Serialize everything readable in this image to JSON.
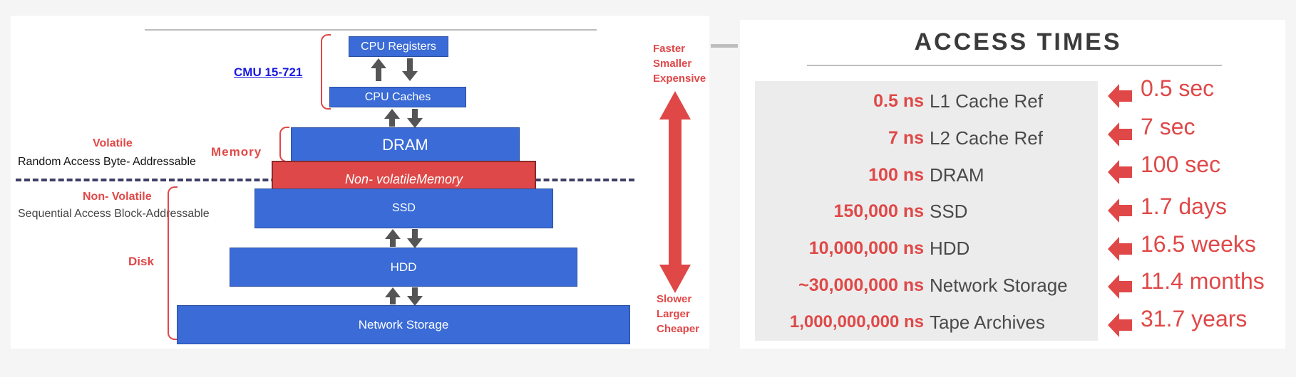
{
  "left": {
    "course_link": "CMU 15-721",
    "volatile_label": "Volatile",
    "random_access_label": "Random Access  Byte- Addressable",
    "memory_label": "Memory",
    "non_volatile_label": "Non- Volatile",
    "sequential_label": "Sequential Access  Block-Addressable",
    "disk_label": "Disk",
    "boxes": {
      "cpu_registers": "CPU Registers",
      "cpu_caches": "CPU Caches",
      "dram": "DRAM",
      "nvm": "Non- volatileMemory",
      "ssd": "SSD",
      "hdd": "HDD",
      "network_storage": "Network Storage"
    },
    "faster_top": [
      "Faster",
      "Smaller",
      "Expensive"
    ],
    "slower_bottom": [
      "Slower",
      "Larger",
      "Cheaper"
    ]
  },
  "right": {
    "title": "ACCESS TIMES",
    "rows": [
      {
        "value": "0.5 ns",
        "name": "L1 Cache Ref",
        "human": "0.5 sec"
      },
      {
        "value": "7 ns",
        "name": "L2 Cache Ref",
        "human": "7 sec"
      },
      {
        "value": "100 ns",
        "name": "DRAM",
        "human": "100 sec"
      },
      {
        "value": "150,000 ns",
        "name": "SSD",
        "human": "1.7 days"
      },
      {
        "value": "10,000,000 ns",
        "name": "HDD",
        "human": "16.5 weeks"
      },
      {
        "value": "~30,000,000 ns",
        "name": "Network Storage",
        "human": "11.4 months"
      },
      {
        "value": "1,000,000,000 ns",
        "name": "Tape Archives",
        "human": "31.7 years"
      }
    ]
  },
  "colors": {
    "box_blue": "#3a6bd6",
    "accent_red": "#e04848"
  }
}
